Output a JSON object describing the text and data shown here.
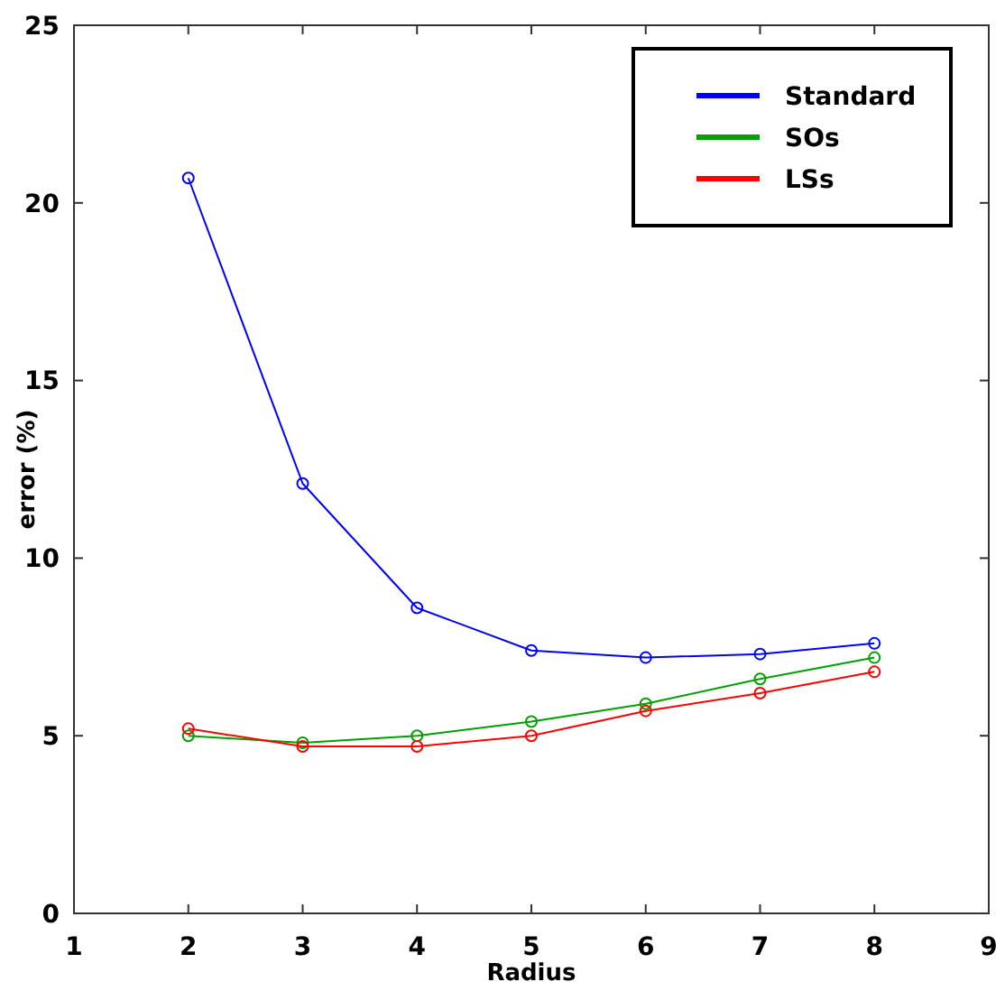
{
  "chart_data": {
    "type": "line",
    "xlabel": "Radius",
    "ylabel": "error (%)",
    "x": [
      2,
      3,
      4,
      5,
      6,
      7,
      8
    ],
    "series": [
      {
        "name": "Standard",
        "color": "#0000ff",
        "values": [
          20.7,
          12.1,
          8.6,
          7.4,
          7.2,
          7.3,
          7.6
        ]
      },
      {
        "name": "SOs",
        "color": "#00a000",
        "values": [
          5.0,
          4.8,
          5.0,
          5.4,
          5.9,
          6.6,
          7.2
        ]
      },
      {
        "name": "LSs",
        "color": "#ff0000",
        "values": [
          5.2,
          4.7,
          4.7,
          5.0,
          5.7,
          6.2,
          6.8
        ]
      }
    ],
    "xlim": [
      1,
      9
    ],
    "xticks": [
      1,
      2,
      3,
      4,
      5,
      6,
      7,
      8,
      9
    ],
    "ylim": [
      0,
      25
    ],
    "yticks": [
      0,
      5,
      10,
      15,
      20,
      25
    ],
    "grid": false,
    "legend": "top right",
    "marker": "circle",
    "line_style": "solid"
  }
}
